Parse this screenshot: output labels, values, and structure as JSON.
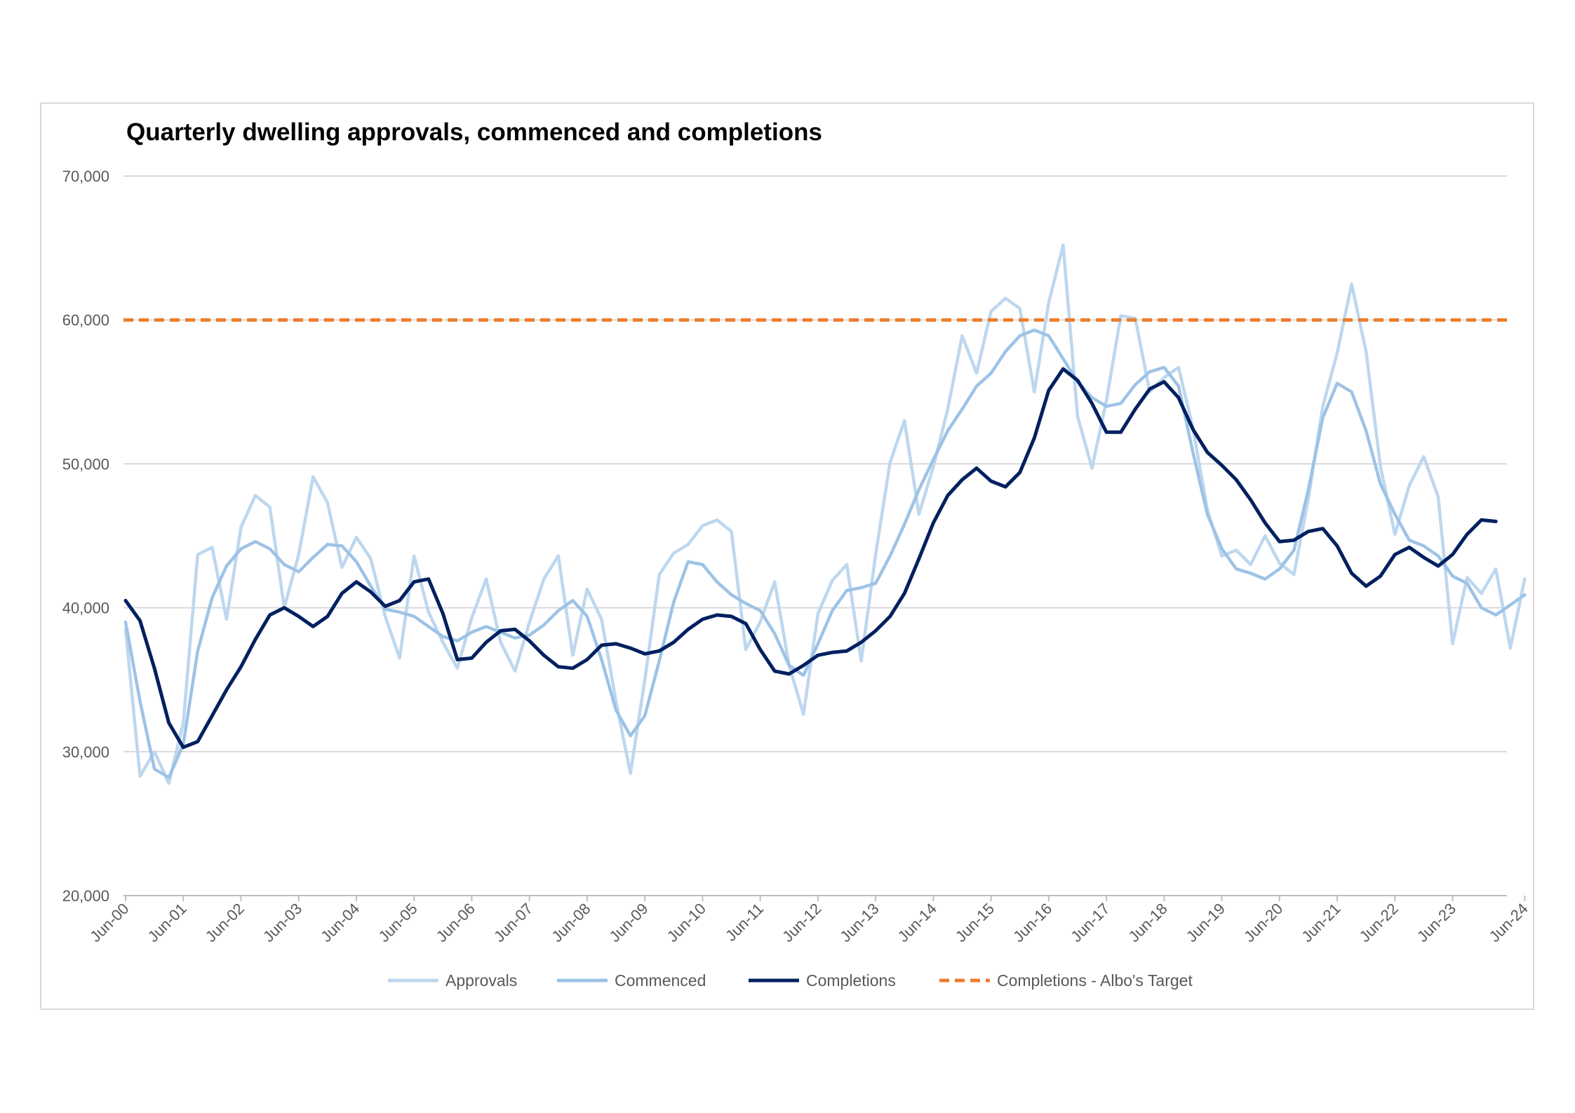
{
  "chart_data": {
    "type": "line",
    "title": "Quarterly dwelling approvals, commenced and completions",
    "ylim": [
      20000,
      70000
    ],
    "y_ticks": [
      "20,000",
      "30,000",
      "40,000",
      "50,000",
      "60,000",
      "70,000"
    ],
    "y_tick_values": [
      20000,
      30000,
      40000,
      50000,
      60000,
      70000
    ],
    "x_tick_labels": [
      "Jun-00",
      "Jun-01",
      "Jun-02",
      "Jun-03",
      "Jun-04",
      "Jun-05",
      "Jun-06",
      "Jun-07",
      "Jun-08",
      "Jun-09",
      "Jun-10",
      "Jun-11",
      "Jun-12",
      "Jun-13",
      "Jun-14",
      "Jun-15",
      "Jun-16",
      "Jun-17",
      "Jun-18",
      "Jun-19",
      "Jun-20",
      "Jun-21",
      "Jun-22",
      "Jun-23",
      "Jun-24"
    ],
    "grid": true,
    "legend_position": "bottom",
    "series": [
      {
        "name": "Approvals",
        "color": "#bdd7ee",
        "style": "solid",
        "values": [
          38500,
          28300,
          30000,
          27800,
          32000,
          43700,
          44200,
          39200,
          45600,
          47800,
          47000,
          40000,
          43700,
          49100,
          47300,
          42800,
          44900,
          43400,
          39400,
          36500,
          43600,
          39700,
          37600,
          35800,
          39300,
          42000,
          37600,
          35600,
          39000,
          42000,
          43600,
          36700,
          41300,
          39200,
          33500,
          28500,
          35000,
          42300,
          43800,
          44400,
          45700,
          46100,
          45300,
          37100,
          39000,
          41800,
          36000,
          32600,
          39600,
          41900,
          43000,
          36300,
          43700,
          50100,
          53000,
          46500,
          49800,
          53800,
          58900,
          56300,
          60600,
          61500,
          60800,
          55000,
          61200,
          65200,
          53300,
          49700,
          54400,
          60300,
          60100,
          55000,
          56000,
          56700,
          52500,
          46800,
          43600,
          44000,
          43000,
          45000,
          43100,
          42300,
          47600,
          54000,
          57700,
          62500,
          57800,
          49800,
          45100,
          48500,
          50500,
          47700,
          37500,
          42100,
          41000,
          42700,
          37200,
          42000
        ]
      },
      {
        "name": "Commenced",
        "color": "#9dc3e6",
        "style": "solid",
        "values": [
          39000,
          33500,
          28800,
          28200,
          30500,
          37000,
          40700,
          42900,
          44100,
          44600,
          44100,
          43000,
          42500,
          43500,
          44400,
          44300,
          43200,
          41500,
          39900,
          39700,
          39400,
          38700,
          38000,
          37700,
          38300,
          38700,
          38300,
          37900,
          38100,
          38800,
          39800,
          40500,
          39400,
          36400,
          32900,
          31100,
          32500,
          36300,
          40400,
          43200,
          43000,
          41800,
          40900,
          40300,
          39800,
          38200,
          36000,
          35300,
          37500,
          39800,
          41200,
          41400,
          41700,
          43600,
          45800,
          48200,
          50300,
          52300,
          53800,
          55400,
          56300,
          57800,
          58900,
          59300,
          58900,
          57300,
          55700,
          54600,
          54000,
          54200,
          55500,
          56400,
          56700,
          55400,
          50800,
          46500,
          44100,
          42700,
          42400,
          42000,
          42700,
          44000,
          48200,
          53200,
          55600,
          55000,
          52300,
          48600,
          46500,
          44700,
          44300,
          43600,
          42200,
          41700,
          40000,
          39500,
          40200,
          40900
        ]
      },
      {
        "name": "Completions",
        "color": "#002060",
        "style": "solid",
        "values": [
          40500,
          39100,
          35800,
          32000,
          30300,
          30700,
          32500,
          34300,
          35900,
          37800,
          39500,
          40000,
          39400,
          38700,
          39400,
          41000,
          41800,
          41100,
          40100,
          40500,
          41800,
          42000,
          39600,
          36400,
          36500,
          37600,
          38400,
          38500,
          37700,
          36700,
          35900,
          35800,
          36400,
          37400,
          37500,
          37200,
          36800,
          37000,
          37600,
          38500,
          39200,
          39500,
          39400,
          38900,
          37100,
          35600,
          35400,
          36000,
          36700,
          36900,
          37000,
          37600,
          38400,
          39400,
          41000,
          43400,
          45900,
          47800,
          48900,
          49700,
          48800,
          48400,
          49400,
          51800,
          55100,
          56600,
          55800,
          54200,
          52200,
          52200,
          53800,
          55200,
          55700,
          54600,
          52400,
          50800,
          49900,
          48900,
          47500,
          45900,
          44600,
          44700,
          45300,
          45500,
          44300,
          42400,
          41500,
          42200,
          43700,
          44200,
          43500,
          42900,
          43700,
          45100,
          46100,
          46000
        ]
      },
      {
        "name": "Completions - Albo's Target",
        "color": "#ed7d31",
        "style": "dashed",
        "values": [
          60000,
          60000
        ]
      }
    ]
  }
}
